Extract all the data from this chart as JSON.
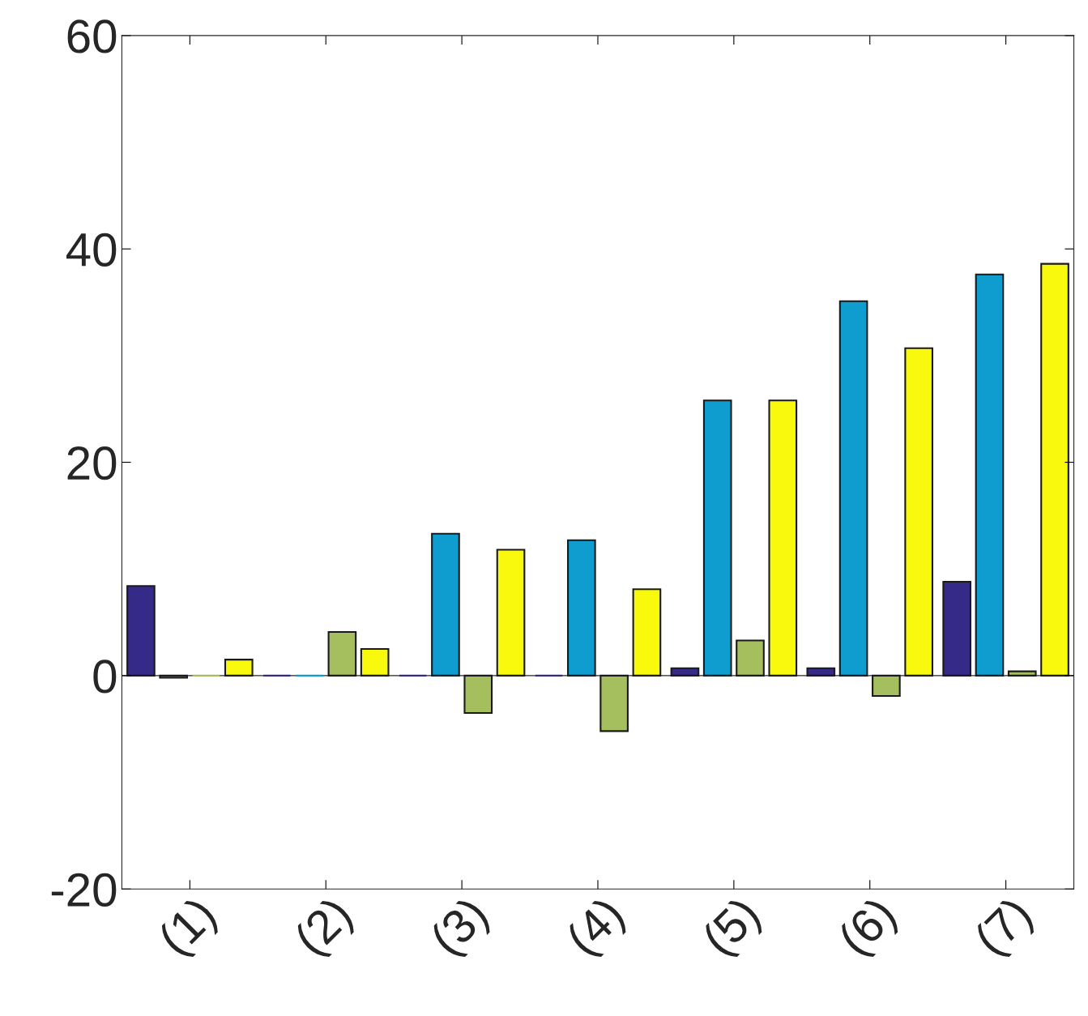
{
  "chart_data": {
    "type": "bar",
    "categories": [
      "(1)",
      "(2)",
      "(3)",
      "(4)",
      "(5)",
      "(6)",
      "(7)"
    ],
    "series": [
      {
        "color": "#352a87",
        "values": [
          8.4,
          0,
          0,
          0,
          0.7,
          0.7,
          8.8
        ]
      },
      {
        "color": "#0f9ccf",
        "values": [
          -0.2,
          0,
          13.3,
          12.7,
          25.8,
          35.1,
          37.6
        ]
      },
      {
        "color": "#a5be5e",
        "values": [
          0,
          4.1,
          -3.5,
          -5.2,
          3.3,
          -1.9,
          0.4
        ]
      },
      {
        "color": "#f9f90e",
        "values": [
          1.5,
          2.5,
          11.8,
          8.1,
          25.8,
          30.7,
          38.6
        ]
      }
    ],
    "ref_lines": [
      {
        "axis": "y",
        "value": 0,
        "color": "#262626"
      }
    ],
    "ylim": [
      -20,
      60
    ],
    "yticks": [
      -20,
      0,
      20,
      40,
      60
    ],
    "grid": false,
    "legend": false
  }
}
